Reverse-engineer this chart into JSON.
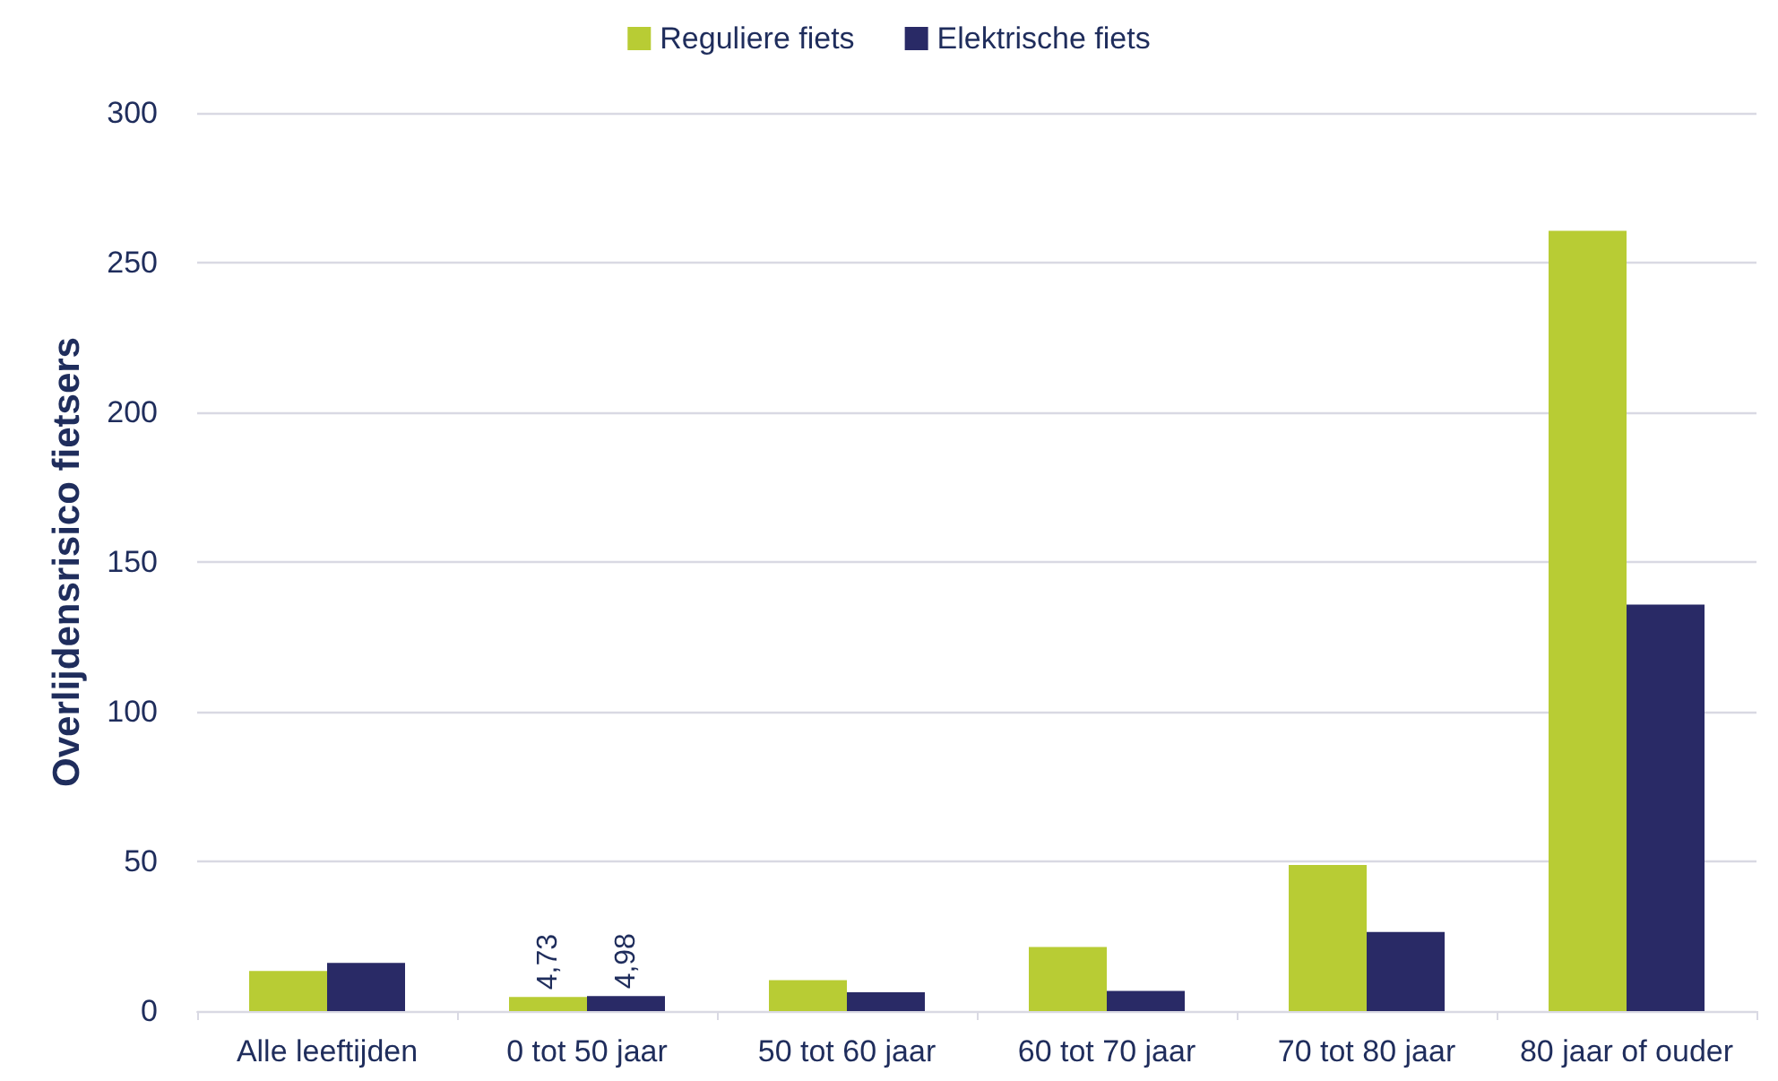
{
  "chart_data": {
    "type": "bar",
    "ylabel": "Overlijdensrisico fietsers",
    "categories": [
      "Alle leeftijden",
      "0 tot 50 jaar",
      "50 tot 60 jaar",
      "60 tot 70 jaar",
      "70 tot 80 jaar",
      "80 jaar of ouder"
    ],
    "series": [
      {
        "name": "Reguliere fiets",
        "color": "#b8cc34",
        "values": [
          13.4,
          4.73,
          10.3,
          21.4,
          48.8,
          260.6
        ],
        "value_labels": [
          null,
          "4,73",
          null,
          null,
          null,
          null
        ]
      },
      {
        "name": "Elektrische fiets",
        "color": "#292a66",
        "values": [
          16.1,
          4.98,
          6.3,
          6.7,
          26.4,
          135.8
        ],
        "value_labels": [
          null,
          "4,98",
          null,
          null,
          null,
          null
        ]
      }
    ],
    "ylim": [
      0,
      300
    ],
    "yticks": [
      0,
      50,
      100,
      150,
      200,
      250,
      300
    ],
    "grid": "y",
    "legend": "top"
  }
}
